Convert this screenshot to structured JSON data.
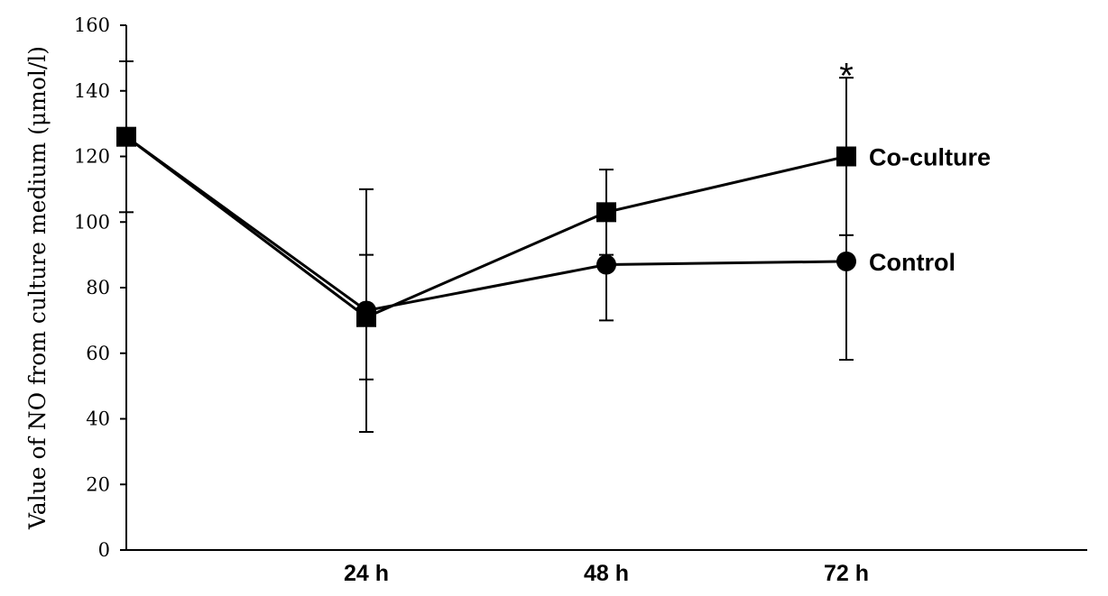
{
  "chart_data": {
    "type": "line",
    "ylabel": "Value of NO from culture medium (μmol/l)",
    "xlabel": "",
    "ylim": [
      0,
      160
    ],
    "yticks": [
      0,
      20,
      40,
      60,
      80,
      100,
      120,
      140,
      160
    ],
    "x_tick_labels": [
      "24 h",
      "48 h",
      "72 h"
    ],
    "grid": false,
    "series": [
      {
        "name": "Co-culture",
        "marker": "square",
        "x": [
          0,
          24,
          48,
          72
        ],
        "values": [
          126,
          71,
          103,
          120
        ],
        "error": [
          null,
          19,
          13,
          24
        ]
      },
      {
        "name": "Control",
        "marker": "circle",
        "x": [
          0,
          24,
          48,
          72
        ],
        "values": [
          126,
          73,
          87,
          88
        ],
        "error": [
          23,
          37,
          17,
          30
        ]
      }
    ],
    "annotations": [
      {
        "text": "*",
        "x": 72,
        "y": 150
      }
    ]
  }
}
